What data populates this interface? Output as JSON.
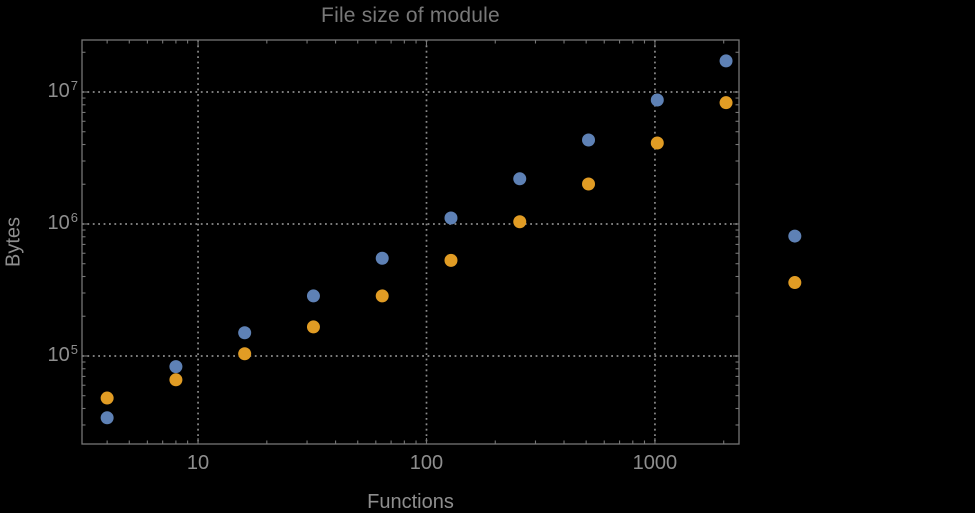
{
  "background": "#000000",
  "colors": {
    "frame": "#767676",
    "grid": "#8b8b8b",
    "tick_label": "#8e8e8e",
    "axis_title": "#8e8e8e",
    "title": "#787878",
    "series_blue": "#5e81b5",
    "series_orange": "#e19c24"
  },
  "chart_data": {
    "type": "scatter",
    "title": "File size of module",
    "xlabel": "Functions",
    "ylabel": "Bytes",
    "x_scale": "log",
    "y_scale": "log",
    "x_domain_log": [
      0.492,
      3.368
    ],
    "y_domain_log": [
      4.333,
      7.394
    ],
    "grid": "dotted gridlines at decades, gray",
    "legend": "none",
    "x_ticks": [
      {
        "label": "10",
        "value": 10
      },
      {
        "label": "100",
        "value": 100
      },
      {
        "label": "1000",
        "value": 1000
      }
    ],
    "y_ticks": [
      {
        "base": "10",
        "exp": "5",
        "value": 100000
      },
      {
        "base": "10",
        "exp": "6",
        "value": 1000000
      },
      {
        "base": "10",
        "exp": "7",
        "value": 10000000
      }
    ],
    "x_values": [
      4,
      8,
      16,
      32,
      64,
      128,
      256,
      512,
      1024,
      2048,
      4096
    ],
    "series": [
      {
        "name": "blue-series",
        "color": "#5e81b5",
        "values": [
          34000,
          83000,
          150000,
          285000,
          550000,
          1110000,
          2200000,
          4330000,
          8700000,
          17200000,
          810000
        ]
      },
      {
        "name": "orange-series",
        "color": "#e19c24",
        "values": [
          48000,
          66000,
          104000,
          166000,
          285000,
          530000,
          1040000,
          2010000,
          4110000,
          8300000,
          360000
        ]
      }
    ]
  }
}
